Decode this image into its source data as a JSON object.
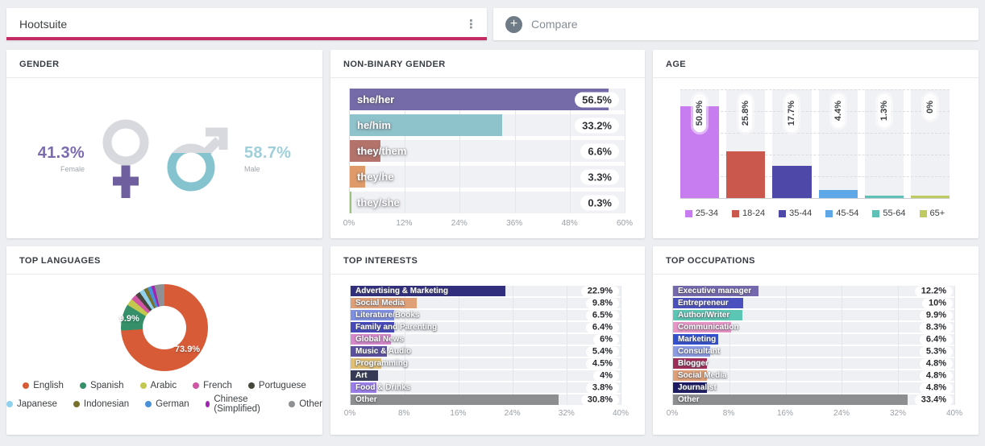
{
  "topbar": {
    "tab_label": "Hootsuite",
    "compare_label": "Compare",
    "accent_color": "#c42a63",
    "icons": {
      "kebab": "⋮",
      "plus": "+"
    }
  },
  "gender": {
    "title": "GENDER",
    "symbol_grey": "#d7d9de",
    "female": {
      "value": "41.3%",
      "percent": 41.3,
      "label": "Female",
      "symbol_color": "#6f5f9e",
      "text_color": "#7c6bb0"
    },
    "male": {
      "value": "58.7%",
      "percent": 58.7,
      "label": "Male",
      "symbol_color": "#85c4cf",
      "text_color": "#9fcfda"
    }
  },
  "nonbinary": {
    "title": "NON-BINARY GENDER",
    "axis_max": 60,
    "ticks": [
      "0%",
      "12%",
      "24%",
      "36%",
      "48%",
      "60%"
    ],
    "rows": [
      {
        "label": "she/her",
        "value": 56.5,
        "display": "56.5%",
        "color": "#756ba8"
      },
      {
        "label": "he/him",
        "value": 33.2,
        "display": "33.2%",
        "color": "#8fc3cb"
      },
      {
        "label": "they/them",
        "value": 6.6,
        "display": "6.6%",
        "color": "#b3736b"
      },
      {
        "label": "they/he",
        "value": 3.3,
        "display": "3.3%",
        "color": "#de9a69"
      },
      {
        "label": "they/she",
        "value": 0.3,
        "display": "0.3%",
        "color": "#9dc07c"
      }
    ]
  },
  "age": {
    "title": "AGE",
    "axis_max": 60,
    "bars": [
      {
        "label": "25-34",
        "value": 50.8,
        "display": "50.8%",
        "color": "#c77def"
      },
      {
        "label": "18-24",
        "value": 25.8,
        "display": "25.8%",
        "color": "#cb584c"
      },
      {
        "label": "35-44",
        "value": 17.7,
        "display": "17.7%",
        "color": "#4e49a9"
      },
      {
        "label": "45-54",
        "value": 4.4,
        "display": "4.4%",
        "color": "#5fa8e8"
      },
      {
        "label": "55-64",
        "value": 1.3,
        "display": "1.3%",
        "color": "#5fc0b6"
      },
      {
        "label": "65+",
        "value": 0,
        "display": "0%",
        "color": "#bfcb61"
      }
    ]
  },
  "languages": {
    "title": "TOP LANGUAGES",
    "slices": [
      {
        "label": "English",
        "value": 73.9,
        "color": "#d85b38"
      },
      {
        "label": "Spanish",
        "value": 9.9,
        "color": "#35906a"
      },
      {
        "label": "Arabic",
        "value": 2.6,
        "color": "#c2c94e"
      },
      {
        "label": "French",
        "value": 2.1,
        "color": "#d155a5"
      },
      {
        "label": "Portuguese",
        "value": 1.8,
        "color": "#45453c"
      },
      {
        "label": "Japanese",
        "value": 1.8,
        "color": "#8fd0ec"
      },
      {
        "label": "Indonesian",
        "value": 1.5,
        "color": "#77712b"
      },
      {
        "label": "German",
        "value": 1.5,
        "color": "#4a90d9"
      },
      {
        "label": "Chinese (Simplified)",
        "value": 1.2,
        "color": "#a224b3"
      },
      {
        "label": "Other",
        "value": 3.7,
        "color": "#8e9093"
      }
    ],
    "callouts": [
      {
        "slice": 0,
        "text": "73.9%"
      },
      {
        "slice": 1,
        "text": "9.9%"
      }
    ]
  },
  "interests": {
    "title": "TOP INTERESTS",
    "axis_max": 40,
    "ticks": [
      "0%",
      "8%",
      "16%",
      "24%",
      "32%",
      "40%"
    ],
    "rows": [
      {
        "label": "Advertising & Marketing",
        "value": 22.9,
        "display": "22.9%",
        "color": "#312e7d"
      },
      {
        "label": "Social Media",
        "value": 9.8,
        "display": "9.8%",
        "color": "#dfa077"
      },
      {
        "label": "Literature/Books",
        "value": 6.5,
        "display": "6.5%",
        "color": "#7e90e2"
      },
      {
        "label": "Family and Parenting",
        "value": 6.4,
        "display": "6.4%",
        "color": "#4648bb"
      },
      {
        "label": "Global News",
        "value": 6,
        "display": "6%",
        "color": "#d688cb"
      },
      {
        "label": "Music & Audio",
        "value": 5.4,
        "display": "5.4%",
        "color": "#5b4f9f"
      },
      {
        "label": "Programming",
        "value": 4.5,
        "display": "4.5%",
        "color": "#e2c073"
      },
      {
        "label": "Art",
        "value": 4,
        "display": "4%",
        "color": "#363a57"
      },
      {
        "label": "Food & Drinks",
        "value": 3.8,
        "display": "3.8%",
        "color": "#9b7dec"
      },
      {
        "label": "Other",
        "value": 30.8,
        "display": "30.8%",
        "color": "#8c8e90"
      }
    ]
  },
  "occupations": {
    "title": "TOP OCCUPATIONS",
    "axis_max": 40,
    "ticks": [
      "0%",
      "8%",
      "16%",
      "24%",
      "32%",
      "40%"
    ],
    "rows": [
      {
        "label": "Executive manager",
        "value": 12.2,
        "display": "12.2%",
        "color": "#7568ae"
      },
      {
        "label": "Entrepreneur",
        "value": 10,
        "display": "10%",
        "color": "#4b50bf"
      },
      {
        "label": "Author/Writer",
        "value": 9.9,
        "display": "9.9%",
        "color": "#5cc6b4"
      },
      {
        "label": "Communication",
        "value": 8.3,
        "display": "8.3%",
        "color": "#e795c6"
      },
      {
        "label": "Marketing",
        "value": 6.4,
        "display": "6.4%",
        "color": "#3351cf"
      },
      {
        "label": "Consultant",
        "value": 5.3,
        "display": "5.3%",
        "color": "#8c9ce4"
      },
      {
        "label": "Blogger",
        "value": 4.8,
        "display": "4.8%",
        "color": "#a02c58"
      },
      {
        "label": "Social Media",
        "value": 4.8,
        "display": "4.8%",
        "color": "#dfa077"
      },
      {
        "label": "Journalist",
        "value": 4.8,
        "display": "4.8%",
        "color": "#1d1b63"
      },
      {
        "label": "Other",
        "value": 33.4,
        "display": "33.4%",
        "color": "#8c8e90"
      }
    ]
  }
}
